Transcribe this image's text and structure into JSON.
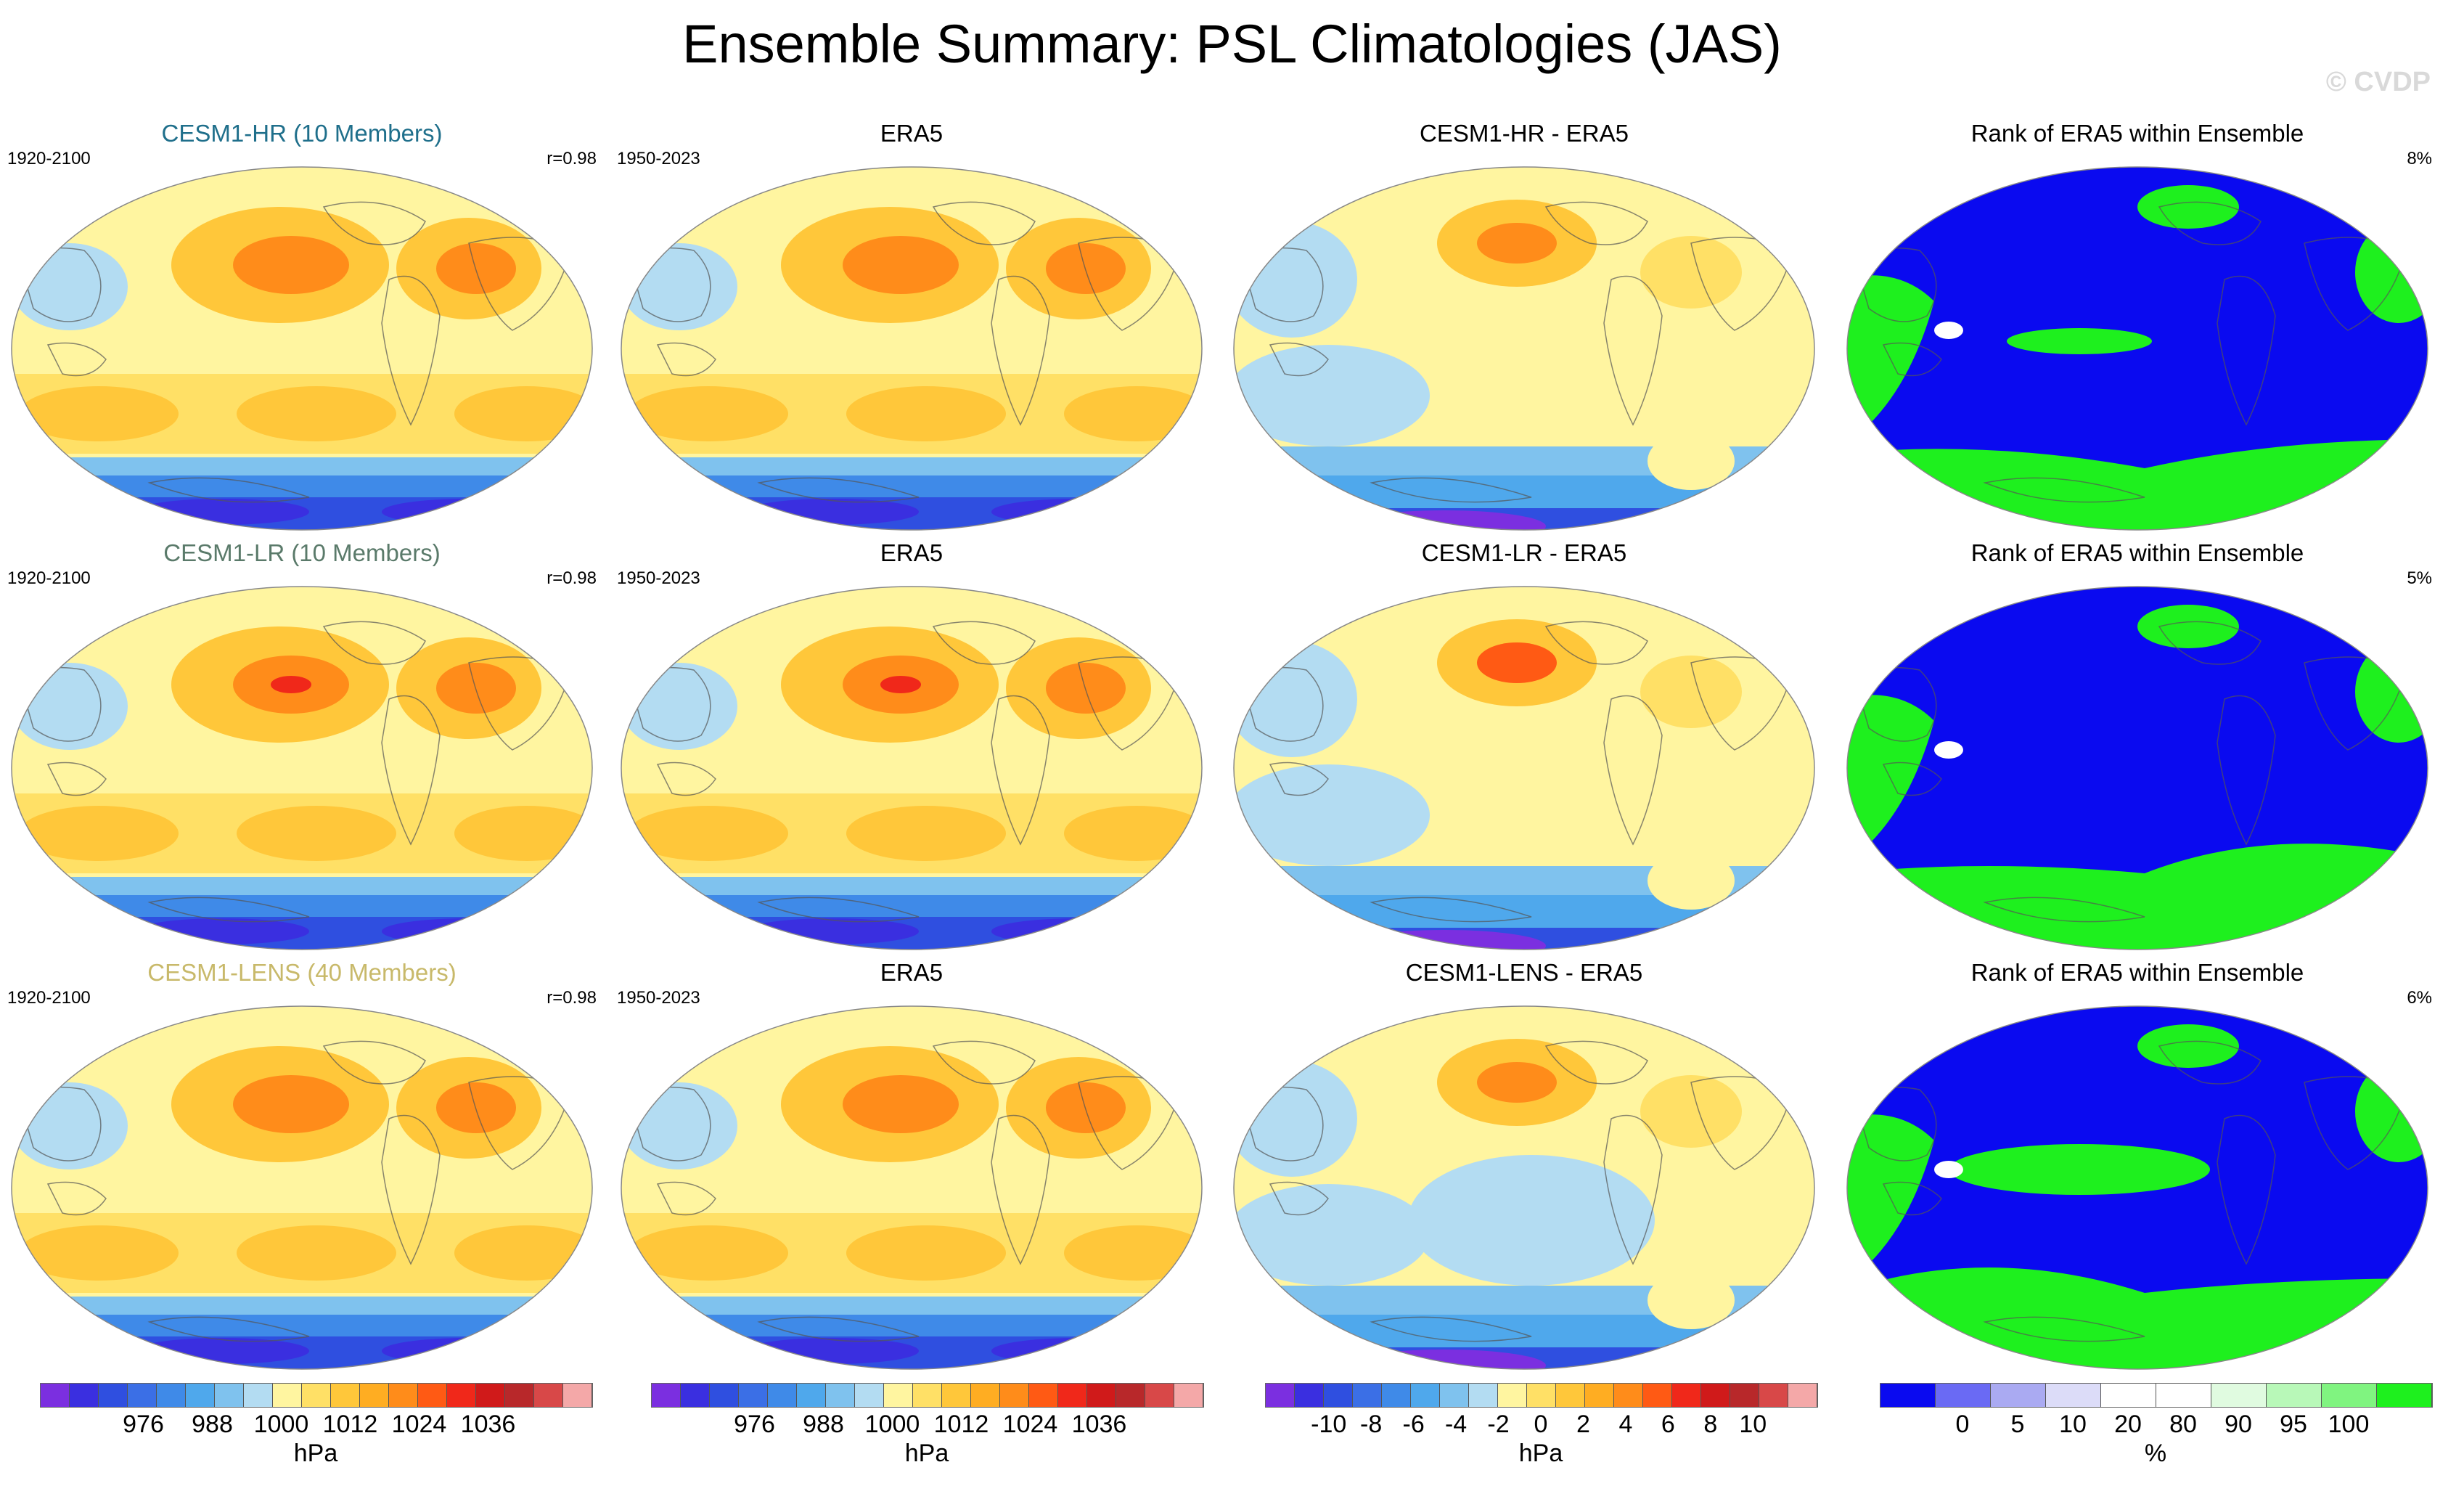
{
  "title": "Ensemble Summary: PSL Climatologies (JAS)",
  "watermark": "© CVDP",
  "colors": {
    "title_hr": "#1f6f8b",
    "title_lr": "#5a7a6a",
    "title_lens": "#c8b96a",
    "land_outline": "#555555"
  },
  "rows": [
    {
      "panels": [
        {
          "title": "CESM1-HR (10 Members)",
          "left": "1920-2100",
          "right": "r=0.98",
          "kind": "psl"
        },
        {
          "title": "ERA5",
          "left": "1950-2023",
          "right": "",
          "kind": "psl"
        },
        {
          "title": "CESM1-HR - ERA5",
          "left": "",
          "right": "",
          "kind": "diff"
        },
        {
          "title": "Rank of ERA5 within Ensemble",
          "left": "",
          "right": "8%",
          "kind": "rank"
        }
      ]
    },
    {
      "panels": [
        {
          "title": "CESM1-LR (10 Members)",
          "left": "1920-2100",
          "right": "r=0.98",
          "kind": "psl"
        },
        {
          "title": "ERA5",
          "left": "1950-2023",
          "right": "",
          "kind": "psl"
        },
        {
          "title": "CESM1-LR - ERA5",
          "left": "",
          "right": "",
          "kind": "diff"
        },
        {
          "title": "Rank of ERA5 within Ensemble",
          "left": "",
          "right": "5%",
          "kind": "rank"
        }
      ]
    },
    {
      "panels": [
        {
          "title": "CESM1-LENS (40 Members)",
          "left": "1920-2100",
          "right": "r=0.98",
          "kind": "psl"
        },
        {
          "title": "ERA5",
          "left": "1950-2023",
          "right": "",
          "kind": "psl"
        },
        {
          "title": "CESM1-LENS - ERA5",
          "left": "",
          "right": "",
          "kind": "diff"
        },
        {
          "title": "Rank of ERA5 within Ensemble",
          "left": "",
          "right": "6%",
          "kind": "rank"
        }
      ]
    }
  ],
  "colorbars": [
    {
      "unit": "hPa",
      "colors": [
        "#7b2fe0",
        "#3a2fe0",
        "#2f4fe0",
        "#3b6fe6",
        "#3f8ae8",
        "#4fa8ec",
        "#7fc2ee",
        "#b3dcf2",
        "#fff5a0",
        "#ffe066",
        "#ffc73a",
        "#ffad22",
        "#ff8c1a",
        "#ff5a14",
        "#f0281a",
        "#d01a1a",
        "#b8282a",
        "#d84848",
        "#f4a8a8"
      ],
      "ticks": [
        "976",
        "988",
        "1000",
        "1012",
        "1024",
        "1036"
      ]
    },
    {
      "unit": "hPa",
      "colors": [
        "#7b2fe0",
        "#3a2fe0",
        "#2f4fe0",
        "#3b6fe6",
        "#3f8ae8",
        "#4fa8ec",
        "#7fc2ee",
        "#b3dcf2",
        "#fff5a0",
        "#ffe066",
        "#ffc73a",
        "#ffad22",
        "#ff8c1a",
        "#ff5a14",
        "#f0281a",
        "#d01a1a",
        "#b8282a",
        "#d84848",
        "#f4a8a8"
      ],
      "ticks": [
        "976",
        "988",
        "1000",
        "1012",
        "1024",
        "1036"
      ]
    },
    {
      "unit": "hPa",
      "colors": [
        "#7b2fe0",
        "#3a2fe0",
        "#2f4fe0",
        "#3b6fe6",
        "#3f8ae8",
        "#4fa8ec",
        "#7fc2ee",
        "#b3dcf2",
        "#fff5a0",
        "#ffe066",
        "#ffc73a",
        "#ffad22",
        "#ff8c1a",
        "#ff5a14",
        "#f0281a",
        "#d01a1a",
        "#b8282a",
        "#d84848",
        "#f4a8a8"
      ],
      "ticks": [
        "-10",
        "-8",
        "-6",
        "-4",
        "-2",
        "0",
        "2",
        "4",
        "6",
        "8",
        "10"
      ]
    },
    {
      "unit": "%",
      "colors": [
        "#0a0af0",
        "#6a6af4",
        "#aaaaf2",
        "#dcdcf8",
        "#ffffff",
        "#ffffff",
        "#e0fbe0",
        "#b8f8b8",
        "#80f480",
        "#1ef01e"
      ],
      "ticks": [
        "0",
        "5",
        "10",
        "20",
        "80",
        "90",
        "95",
        "100"
      ]
    }
  ]
}
